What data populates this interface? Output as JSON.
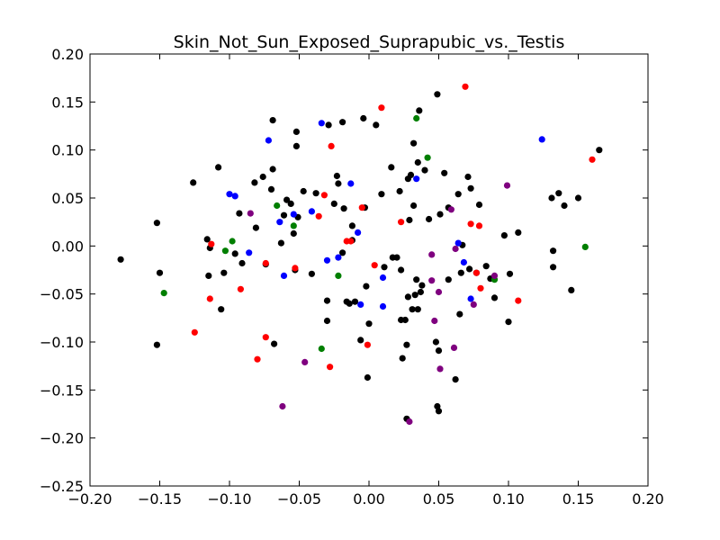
{
  "chart_data": {
    "type": "scatter",
    "title": "Skin_Not_Sun_Exposed_Suprapubic_vs._Testis",
    "xlabel": "",
    "ylabel": "",
    "xlim": [
      -0.2,
      0.2
    ],
    "ylim": [
      -0.25,
      0.2
    ],
    "xticks": [
      "−0.20",
      "−0.15",
      "−0.10",
      "−0.05",
      "0.00",
      "0.05",
      "0.10",
      "0.15",
      "0.20"
    ],
    "yticks": [
      "−0.25",
      "−0.20",
      "−0.15",
      "−0.10",
      "−0.05",
      "0.00",
      "0.05",
      "0.10",
      "0.15",
      "0.20"
    ],
    "grid": false,
    "legend": "none",
    "colors": {
      "black": "#000000",
      "red": "#ff0000",
      "blue": "#0000ff",
      "green": "#007f00",
      "purple": "#7f007f",
      "axes": "#000000",
      "background": "#ffffff"
    },
    "series": [
      {
        "color": "black",
        "points": [
          [
            -0.178,
            -0.014
          ],
          [
            -0.152,
            0.024
          ],
          [
            -0.15,
            -0.028
          ],
          [
            -0.152,
            -0.103
          ],
          [
            -0.126,
            0.066
          ],
          [
            -0.116,
            0.007
          ],
          [
            -0.115,
            -0.031
          ],
          [
            -0.114,
            -0.002
          ],
          [
            -0.108,
            0.082
          ],
          [
            -0.106,
            -0.066
          ],
          [
            -0.104,
            -0.028
          ],
          [
            -0.096,
            -0.008
          ],
          [
            -0.093,
            0.034
          ],
          [
            -0.091,
            -0.018
          ],
          [
            -0.082,
            0.066
          ],
          [
            -0.081,
            0.019
          ],
          [
            -0.076,
            0.072
          ],
          [
            -0.074,
            -0.019
          ],
          [
            -0.07,
            0.059
          ],
          [
            -0.069,
            0.08
          ],
          [
            -0.069,
            0.131
          ],
          [
            -0.068,
            -0.102
          ],
          [
            -0.063,
            0.003
          ],
          [
            -0.061,
            0.032
          ],
          [
            -0.059,
            0.048
          ],
          [
            -0.056,
            0.044
          ],
          [
            -0.054,
            0.013
          ],
          [
            -0.053,
            -0.025
          ],
          [
            -0.052,
            0.104
          ],
          [
            -0.052,
            0.119
          ],
          [
            -0.051,
            0.03
          ],
          [
            -0.047,
            0.057
          ],
          [
            -0.041,
            -0.029
          ],
          [
            -0.038,
            0.055
          ],
          [
            -0.03,
            -0.057
          ],
          [
            -0.03,
            -0.078
          ],
          [
            -0.029,
            0.126
          ],
          [
            -0.025,
            0.044
          ],
          [
            -0.023,
            0.073
          ],
          [
            -0.022,
            0.065
          ],
          [
            -0.019,
            0.129
          ],
          [
            -0.019,
            -0.007
          ],
          [
            -0.018,
            0.039
          ],
          [
            -0.016,
            -0.058
          ],
          [
            -0.014,
            -0.06
          ],
          [
            -0.012,
            0.006
          ],
          [
            -0.012,
            0.021
          ],
          [
            -0.01,
            -0.058
          ],
          [
            -0.006,
            -0.098
          ],
          [
            -0.004,
            0.133
          ],
          [
            -0.003,
            0.04
          ],
          [
            -0.002,
            -0.042
          ],
          [
            -0.001,
            -0.137
          ],
          [
            0.0,
            -0.081
          ],
          [
            0.005,
            0.126
          ],
          [
            0.009,
            0.054
          ],
          [
            0.011,
            -0.022
          ],
          [
            0.016,
            0.082
          ],
          [
            0.017,
            -0.012
          ],
          [
            0.02,
            -0.012
          ],
          [
            0.022,
            0.057
          ],
          [
            0.023,
            -0.025
          ],
          [
            0.023,
            -0.077
          ],
          [
            0.024,
            -0.117
          ],
          [
            0.026,
            -0.077
          ],
          [
            0.027,
            -0.103
          ],
          [
            0.027,
            -0.18
          ],
          [
            0.028,
            -0.053
          ],
          [
            0.028,
            0.07
          ],
          [
            0.029,
            0.027
          ],
          [
            0.03,
            0.074
          ],
          [
            0.031,
            -0.066
          ],
          [
            0.032,
            0.042
          ],
          [
            0.032,
            0.107
          ],
          [
            0.033,
            -0.051
          ],
          [
            0.034,
            -0.035
          ],
          [
            0.035,
            -0.066
          ],
          [
            0.035,
            0.087
          ],
          [
            0.036,
            0.141
          ],
          [
            0.037,
            -0.048
          ],
          [
            0.038,
            -0.041
          ],
          [
            0.04,
            0.079
          ],
          [
            0.043,
            0.028
          ],
          [
            0.048,
            -0.1
          ],
          [
            0.049,
            0.158
          ],
          [
            0.049,
            -0.167
          ],
          [
            0.05,
            -0.109
          ],
          [
            0.05,
            -0.172
          ],
          [
            0.051,
            0.033
          ],
          [
            0.054,
            0.076
          ],
          [
            0.057,
            -0.035
          ],
          [
            0.057,
            0.04
          ],
          [
            0.062,
            -0.139
          ],
          [
            0.064,
            0.054
          ],
          [
            0.065,
            -0.071
          ],
          [
            0.066,
            -0.028
          ],
          [
            0.067,
            0.001
          ],
          [
            0.071,
            0.072
          ],
          [
            0.072,
            -0.024
          ],
          [
            0.073,
            0.06
          ],
          [
            0.077,
            -0.028
          ],
          [
            0.079,
            0.043
          ],
          [
            0.084,
            -0.021
          ],
          [
            0.087,
            -0.034
          ],
          [
            0.09,
            -0.054
          ],
          [
            0.097,
            0.011
          ],
          [
            0.1,
            -0.079
          ],
          [
            0.101,
            -0.029
          ],
          [
            0.107,
            0.014
          ],
          [
            0.131,
            0.05
          ],
          [
            0.132,
            -0.022
          ],
          [
            0.132,
            -0.005
          ],
          [
            0.136,
            0.055
          ],
          [
            0.14,
            0.042
          ],
          [
            0.145,
            -0.046
          ],
          [
            0.15,
            0.05
          ],
          [
            0.165,
            0.1
          ]
        ]
      },
      {
        "color": "red",
        "points": [
          [
            -0.125,
            -0.09
          ],
          [
            -0.114,
            -0.055
          ],
          [
            -0.113,
            0.002
          ],
          [
            -0.092,
            -0.045
          ],
          [
            -0.08,
            -0.118
          ],
          [
            -0.074,
            -0.095
          ],
          [
            -0.074,
            -0.018
          ],
          [
            -0.053,
            -0.023
          ],
          [
            -0.036,
            0.031
          ],
          [
            -0.032,
            0.053
          ],
          [
            -0.028,
            -0.126
          ],
          [
            -0.027,
            0.104
          ],
          [
            -0.016,
            0.005
          ],
          [
            -0.013,
            0.005
          ],
          [
            -0.005,
            0.04
          ],
          [
            -0.001,
            -0.103
          ],
          [
            0.004,
            -0.02
          ],
          [
            0.009,
            0.144
          ],
          [
            0.023,
            0.025
          ],
          [
            0.069,
            0.166
          ],
          [
            0.073,
            0.023
          ],
          [
            0.077,
            -0.028
          ],
          [
            0.079,
            0.021
          ],
          [
            0.08,
            -0.044
          ],
          [
            0.107,
            -0.057
          ],
          [
            0.16,
            0.09
          ]
        ]
      },
      {
        "color": "blue",
        "points": [
          [
            -0.1,
            0.054
          ],
          [
            -0.096,
            0.052
          ],
          [
            -0.086,
            -0.007
          ],
          [
            -0.072,
            0.11
          ],
          [
            -0.064,
            0.025
          ],
          [
            -0.061,
            -0.031
          ],
          [
            -0.054,
            0.033
          ],
          [
            -0.041,
            0.036
          ],
          [
            -0.034,
            0.128
          ],
          [
            -0.03,
            -0.015
          ],
          [
            -0.022,
            -0.012
          ],
          [
            -0.013,
            0.065
          ],
          [
            -0.008,
            0.014
          ],
          [
            -0.006,
            -0.061
          ],
          [
            0.01,
            -0.033
          ],
          [
            0.01,
            -0.063
          ],
          [
            0.034,
            0.07
          ],
          [
            0.064,
            0.003
          ],
          [
            0.068,
            -0.017
          ],
          [
            0.073,
            -0.055
          ],
          [
            0.124,
            0.111
          ]
        ]
      },
      {
        "color": "green",
        "points": [
          [
            -0.147,
            -0.049
          ],
          [
            -0.103,
            -0.005
          ],
          [
            -0.098,
            0.005
          ],
          [
            -0.066,
            0.042
          ],
          [
            -0.054,
            0.021
          ],
          [
            -0.034,
            -0.107
          ],
          [
            -0.022,
            -0.031
          ],
          [
            0.034,
            0.133
          ],
          [
            0.042,
            0.092
          ],
          [
            0.09,
            -0.035
          ],
          [
            0.155,
            -0.001
          ]
        ]
      },
      {
        "color": "purple",
        "points": [
          [
            -0.085,
            0.034
          ],
          [
            -0.062,
            -0.167
          ],
          [
            -0.046,
            -0.121
          ],
          [
            0.029,
            -0.183
          ],
          [
            0.045,
            -0.009
          ],
          [
            0.045,
            -0.036
          ],
          [
            0.047,
            -0.078
          ],
          [
            0.05,
            -0.048
          ],
          [
            0.051,
            -0.128
          ],
          [
            0.059,
            0.038
          ],
          [
            0.061,
            -0.106
          ],
          [
            0.062,
            -0.003
          ],
          [
            0.075,
            -0.061
          ],
          [
            0.09,
            -0.031
          ],
          [
            0.099,
            0.063
          ]
        ]
      }
    ]
  }
}
